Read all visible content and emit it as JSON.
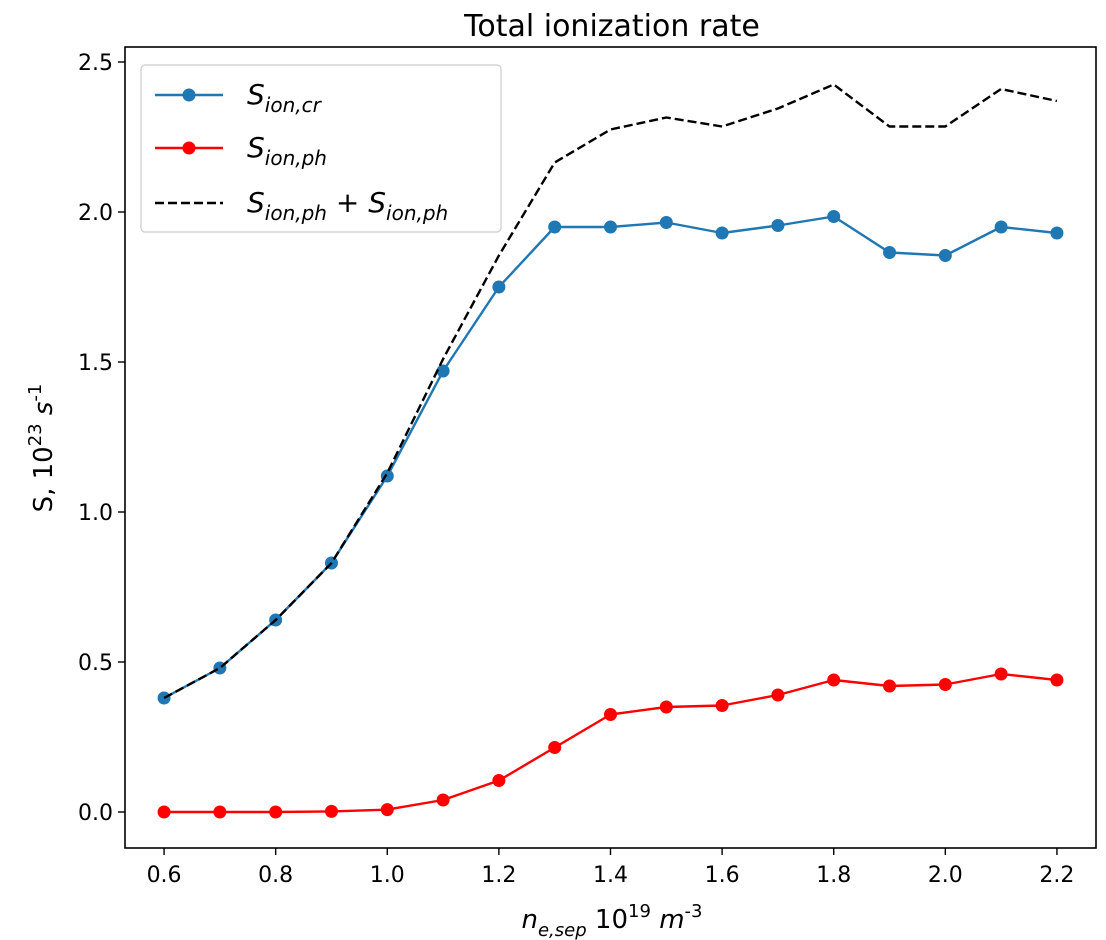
{
  "chart_data": {
    "type": "line",
    "title": "Total ionization rate",
    "xlabel": "n_{e,sep} 10^{19} m^{-3}",
    "ylabel": "S, 10^{23} s^{-1}",
    "x": [
      0.6,
      0.7,
      0.8,
      0.9,
      1.0,
      1.1,
      1.2,
      1.3,
      1.4,
      1.5,
      1.6,
      1.7,
      1.8,
      1.9,
      2.0,
      2.1,
      2.2
    ],
    "xlim": [
      0.53,
      2.27
    ],
    "ylim": [
      -0.12,
      2.55
    ],
    "xticks": [
      "0.6",
      "0.8",
      "1.0",
      "1.2",
      "1.4",
      "1.6",
      "1.8",
      "2.0",
      "2.2"
    ],
    "yticks": [
      "0.0",
      "0.5",
      "1.0",
      "1.5",
      "2.0",
      "2.5"
    ],
    "legend_position": "top-left",
    "grid": false,
    "series": [
      {
        "name": "S_{ion,cr}",
        "color": "#1f77b4",
        "style": "solid",
        "marker": "circle",
        "values": [
          0.38,
          0.48,
          0.64,
          0.83,
          1.12,
          1.47,
          1.75,
          1.95,
          1.95,
          1.965,
          1.93,
          1.955,
          1.985,
          1.865,
          1.855,
          1.95,
          1.93
        ]
      },
      {
        "name": "S_{ion,ph}",
        "color": "#ff0000",
        "style": "solid",
        "marker": "circle",
        "values": [
          0.0,
          0.0,
          0.0,
          0.002,
          0.008,
          0.04,
          0.105,
          0.215,
          0.325,
          0.35,
          0.355,
          0.39,
          0.44,
          0.42,
          0.425,
          0.46,
          0.44
        ]
      },
      {
        "name": "S_{ion,ph} + S_{ion,ph}",
        "color": "#000000",
        "style": "dashed",
        "marker": "none",
        "values": [
          0.38,
          0.48,
          0.64,
          0.83,
          1.13,
          1.51,
          1.855,
          2.165,
          2.275,
          2.315,
          2.285,
          2.345,
          2.425,
          2.285,
          2.285,
          2.41,
          2.37
        ]
      }
    ]
  }
}
